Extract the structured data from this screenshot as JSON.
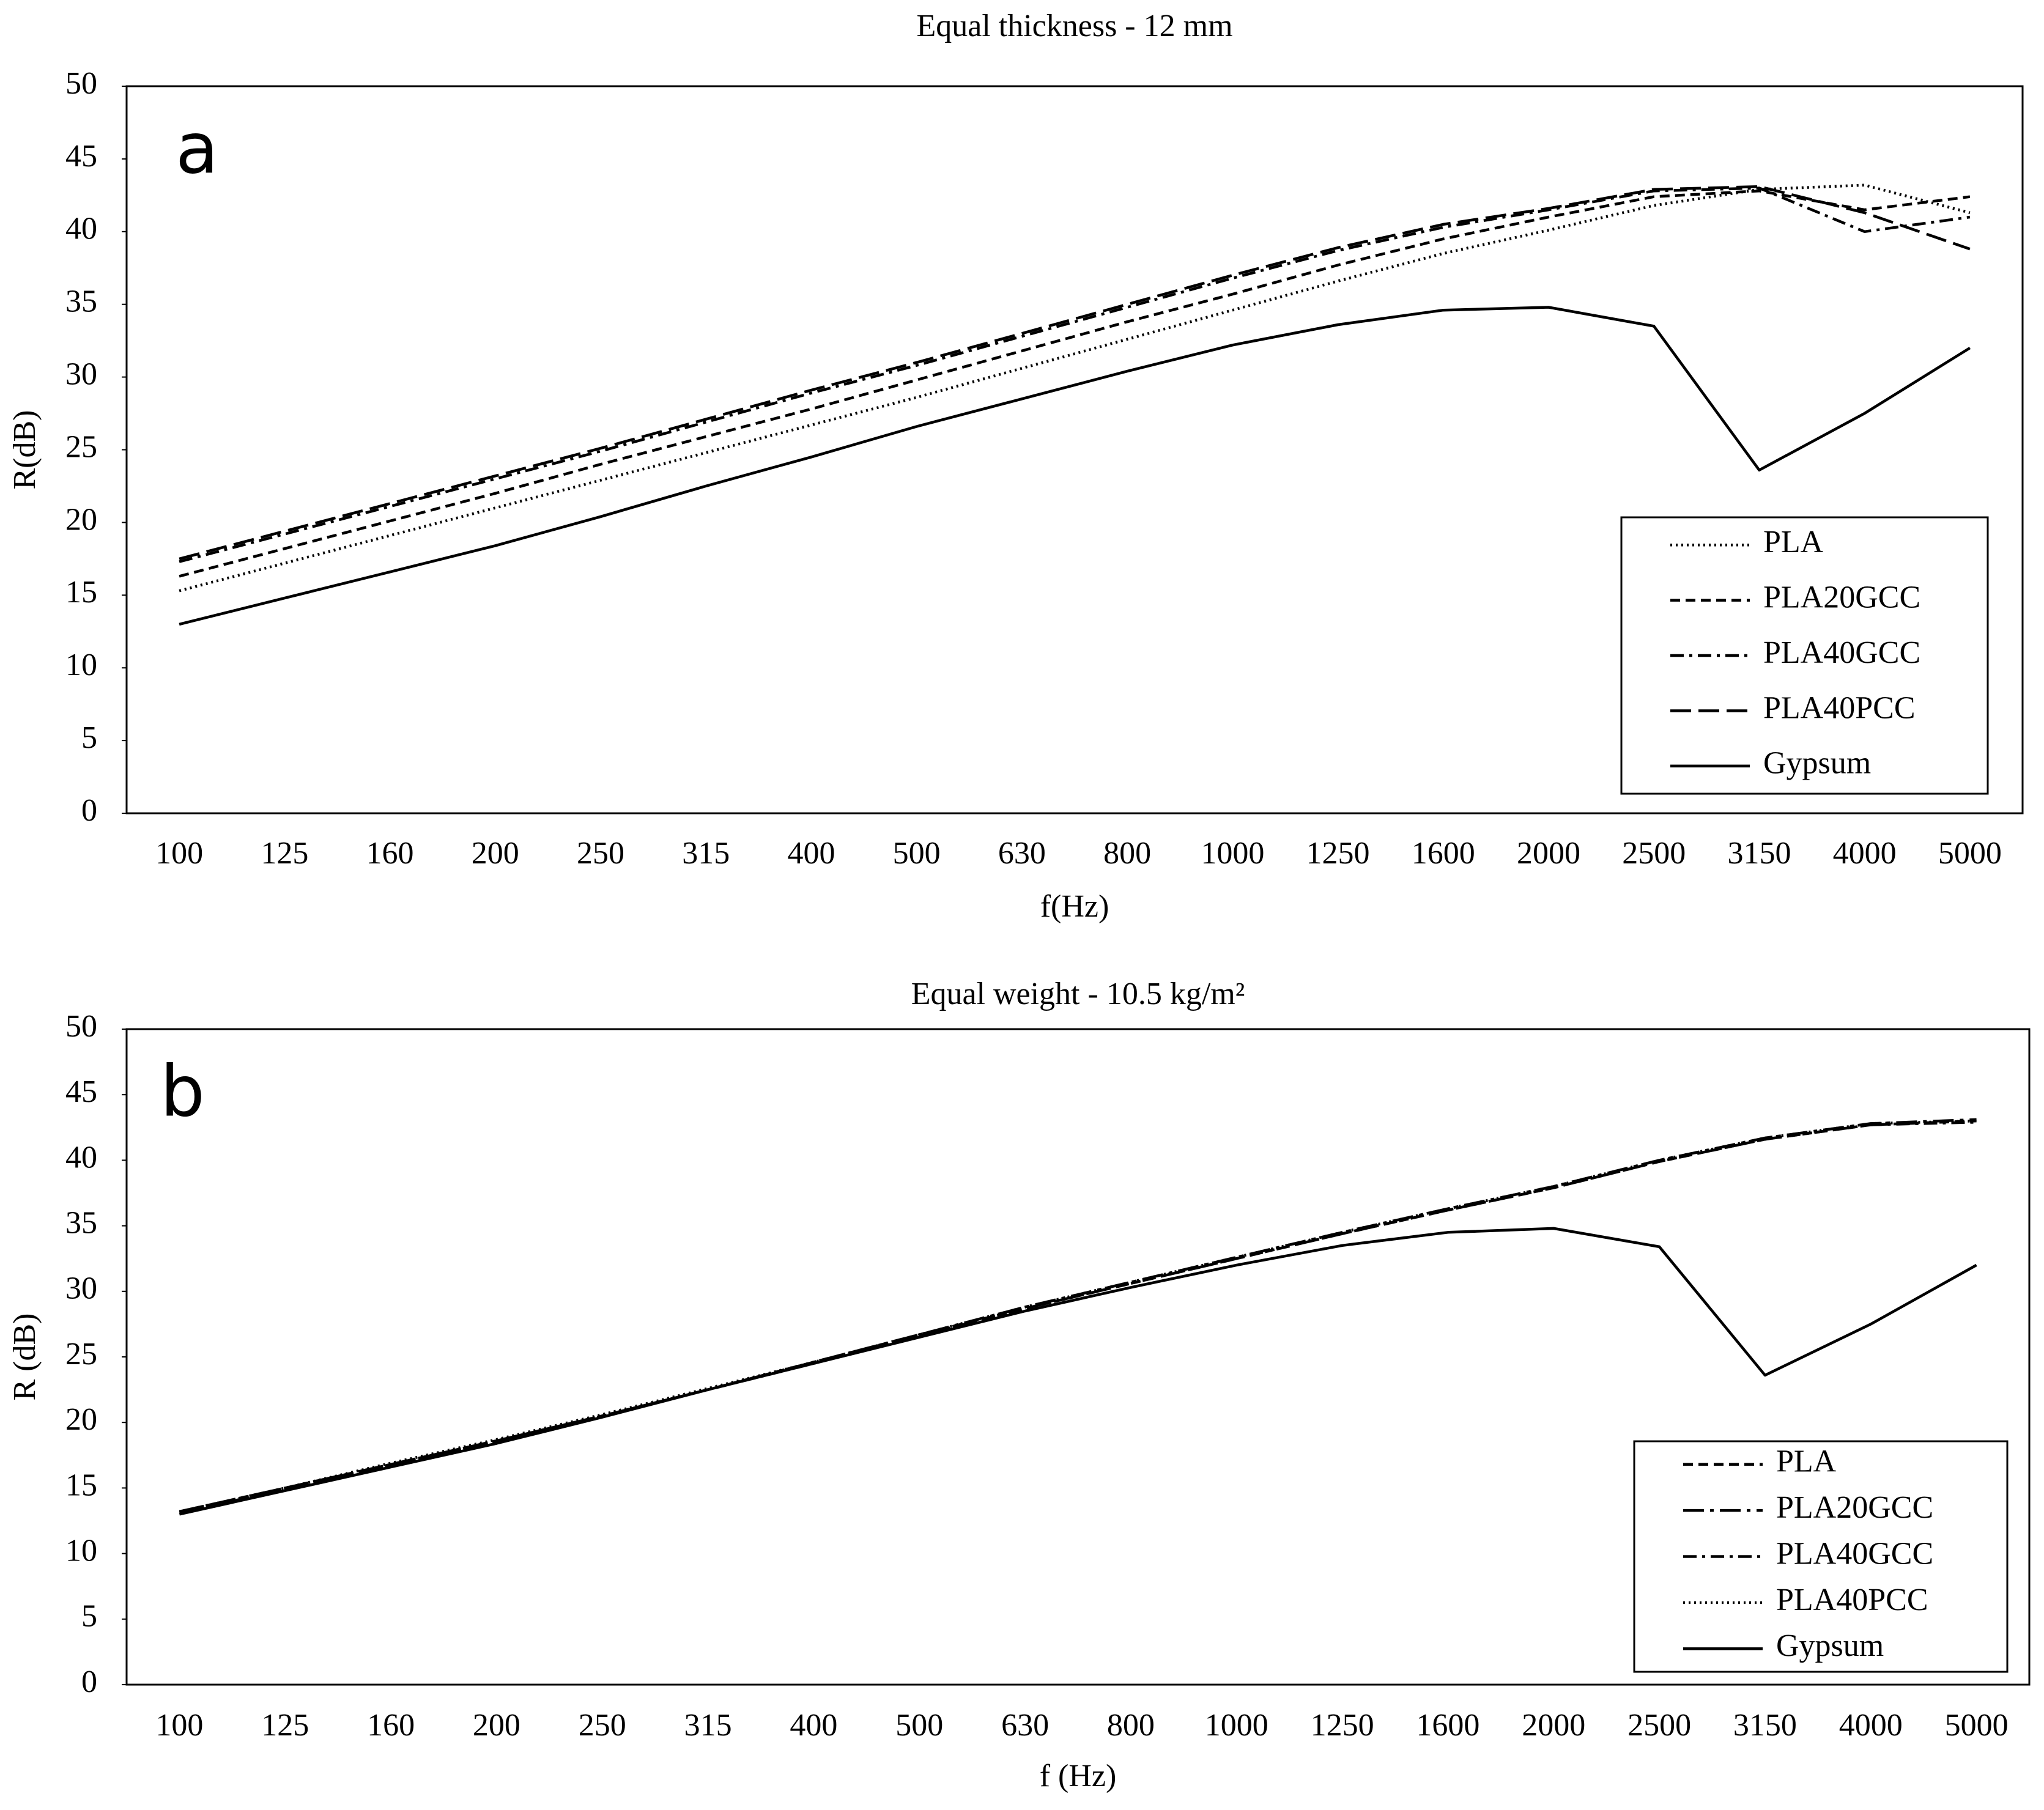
{
  "chart_data": [
    {
      "type": "line",
      "title": "Equal thickness  - 12 mm",
      "panel_label": "a",
      "x_label": "f(Hz)",
      "y_label": "R(dB)",
      "categories": [
        "100",
        "125",
        "160",
        "200",
        "250",
        "315",
        "400",
        "500",
        "630",
        "800",
        "1000",
        "1250",
        "1600",
        "2000",
        "2500",
        "3150",
        "4000",
        "5000"
      ],
      "ylim": [
        0,
        50
      ],
      "yticks": [
        0,
        5,
        10,
        15,
        20,
        25,
        30,
        35,
        40,
        45,
        50
      ],
      "legend": "lower right",
      "series": [
        {
          "name": "PLA",
          "color": "#000000",
          "dash": "dotted",
          "values": [
            15.3,
            17.2,
            19.1,
            21.0,
            22.9,
            24.8,
            26.7,
            28.6,
            30.6,
            32.6,
            34.6,
            36.6,
            38.5,
            40.1,
            41.8,
            42.9,
            43.2,
            41.3
          ]
        },
        {
          "name": "PLA20GCC",
          "color": "#000000",
          "dash": "dashed",
          "values": [
            16.3,
            18.2,
            20.1,
            22.0,
            24.0,
            25.9,
            27.8,
            29.8,
            31.8,
            33.8,
            35.7,
            37.7,
            39.5,
            41.0,
            42.4,
            42.8,
            41.5,
            42.4
          ]
        },
        {
          "name": "PLA40GCC",
          "color": "#000000",
          "dash": "dashdot",
          "values": [
            17.3,
            19.2,
            21.1,
            23.0,
            24.9,
            26.9,
            28.9,
            30.8,
            32.8,
            34.8,
            36.8,
            38.7,
            40.3,
            41.5,
            42.8,
            43.0,
            40.0,
            41.0
          ]
        },
        {
          "name": "PLA40PCC",
          "color": "#000000",
          "dash": "longdash",
          "values": [
            17.5,
            19.4,
            21.3,
            23.2,
            25.1,
            27.1,
            29.1,
            31.0,
            33.0,
            35.0,
            37.0,
            38.9,
            40.5,
            41.6,
            42.9,
            43.1,
            41.3,
            38.8
          ]
        },
        {
          "name": "Gypsum",
          "color": "#000000",
          "dash": "solid",
          "values": [
            13.0,
            14.8,
            16.6,
            18.4,
            20.4,
            22.5,
            24.5,
            26.6,
            28.5,
            30.4,
            32.2,
            33.6,
            34.6,
            34.8,
            33.5,
            23.6,
            27.5,
            32.0
          ]
        }
      ]
    },
    {
      "type": "line",
      "title": "Equal weight  - 10.5 kg/m²",
      "panel_label": "b",
      "x_label": "f (Hz)",
      "y_label": "R (dB)",
      "categories": [
        "100",
        "125",
        "160",
        "200",
        "250",
        "315",
        "400",
        "500",
        "630",
        "800",
        "1000",
        "1250",
        "1600",
        "2000",
        "2500",
        "3150",
        "4000",
        "5000"
      ],
      "ylim": [
        0,
        50
      ],
      "yticks": [
        0,
        5,
        10,
        15,
        20,
        25,
        30,
        35,
        40,
        45,
        50
      ],
      "legend": "lower right",
      "series": [
        {
          "name": "PLA",
          "color": "#000000",
          "dash": "dashed",
          "values": [
            13.2,
            15.0,
            16.8,
            18.6,
            20.5,
            22.5,
            24.6,
            26.7,
            28.7,
            30.6,
            32.5,
            34.4,
            36.2,
            37.9,
            39.9,
            41.6,
            42.7,
            43.0
          ]
        },
        {
          "name": "PLA20GCC",
          "color": "#000000",
          "dash": "longdashdot",
          "values": [
            13.2,
            15.0,
            16.8,
            18.6,
            20.5,
            22.5,
            24.6,
            26.7,
            28.8,
            30.7,
            32.6,
            34.5,
            36.3,
            38.0,
            40.0,
            41.7,
            42.8,
            43.1
          ]
        },
        {
          "name": "PLA40GCC",
          "color": "#000000",
          "dash": "dashdot",
          "values": [
            13.1,
            14.9,
            16.8,
            18.6,
            20.5,
            22.5,
            24.5,
            26.6,
            28.7,
            30.6,
            32.5,
            34.4,
            36.2,
            37.9,
            39.9,
            41.6,
            42.7,
            42.9
          ]
        },
        {
          "name": "PLA40PCC",
          "color": "#000000",
          "dash": "dotted",
          "values": [
            13.2,
            15.0,
            16.9,
            18.7,
            20.6,
            22.6,
            24.6,
            26.7,
            28.8,
            30.7,
            32.6,
            34.5,
            36.3,
            38.0,
            40.0,
            41.7,
            42.8,
            43.0
          ]
        },
        {
          "name": "Gypsum",
          "color": "#000000",
          "dash": "solid",
          "values": [
            13.0,
            14.8,
            16.6,
            18.4,
            20.4,
            22.5,
            24.5,
            26.5,
            28.5,
            30.3,
            32.0,
            33.5,
            34.5,
            34.8,
            33.4,
            23.6,
            27.5,
            32.0
          ]
        }
      ]
    }
  ]
}
